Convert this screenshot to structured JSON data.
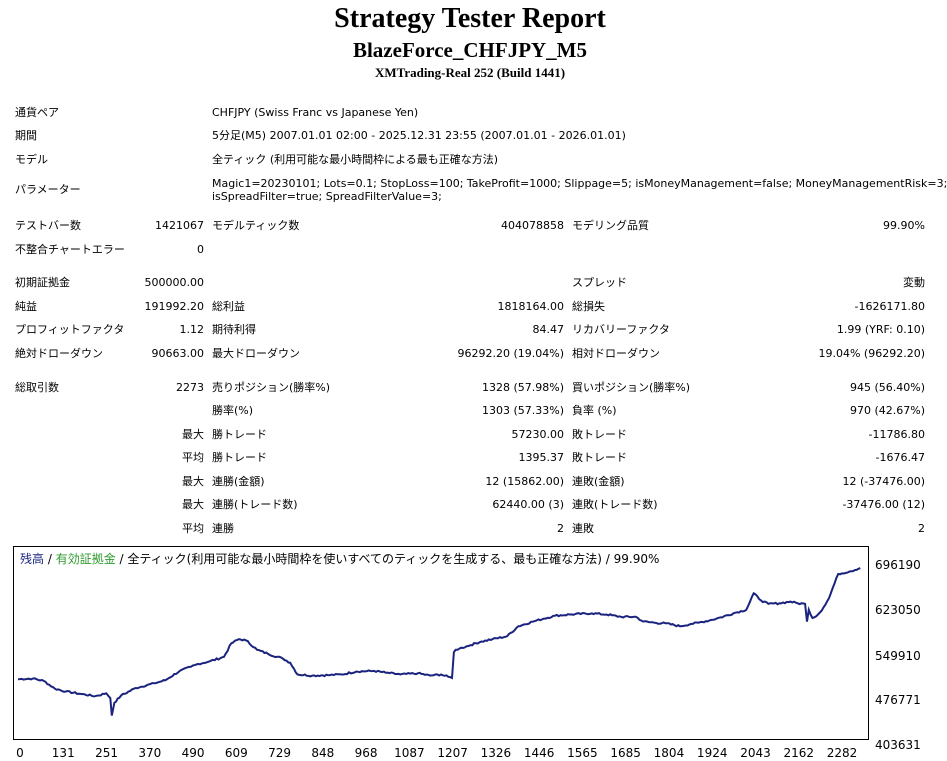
{
  "report": {
    "title": "Strategy Tester Report",
    "ea_name": "BlazeForce_CHFJPY_M5",
    "server": "XMTrading-Real 252 (Build 1441)"
  },
  "info": {
    "symbol_label": "通貨ペア",
    "symbol_value": "CHFJPY (Swiss Franc vs Japanese Yen)",
    "period_label": "期間",
    "period_value": "5分足(M5) 2007.01.01 02:00 - 2025.12.31 23:55 (2007.01.01 - 2026.01.01)",
    "model_label": "モデル",
    "model_value": "全ティック (利用可能な最小時間枠による最も正確な方法)",
    "params_label": "パラメーター",
    "params_line1": "Magic1=20230101; Lots=0.1; StopLoss=100; TakeProfit=1000; Slippage=5; isMoneyManagement=false; MoneyManagementRisk=3;",
    "params_line2": "isSpreadFilter=true; SpreadFilterValue=3;"
  },
  "bars": {
    "test_bars_label": "テストバー数",
    "test_bars_value": "1421067",
    "model_ticks_label": "モデルティック数",
    "model_ticks_value": "404078858",
    "quality_label": "モデリング品質",
    "quality_value": "99.90%",
    "mismatch_label": "不整合チャートエラー",
    "mismatch_value": "0"
  },
  "summary": {
    "initial_deposit_label": "初期証拠金",
    "initial_deposit_value": "500000.00",
    "spread_label": "スプレッド",
    "spread_value": "変動",
    "net_profit_label": "純益",
    "net_profit_value": "191992.20",
    "gross_profit_label": "総利益",
    "gross_profit_value": "1818164.00",
    "gross_loss_label": "総損失",
    "gross_loss_value": "-1626171.80",
    "profit_factor_label": "プロフィットファクタ",
    "profit_factor_value": "1.12",
    "expected_payoff_label": "期待利得",
    "expected_payoff_value": "84.47",
    "recovery_factor_label": "リカバリーファクタ",
    "recovery_factor_value": "1.99 (YRF: 0.10)",
    "abs_dd_label": "絶対ドローダウン",
    "abs_dd_value": "90663.00",
    "max_dd_label": "最大ドローダウン",
    "max_dd_value": "96292.20 (19.04%)",
    "rel_dd_label": "相対ドローダウン",
    "rel_dd_value": "19.04% (96292.20)"
  },
  "trades": {
    "total_label": "総取引数",
    "total_value": "2273",
    "short_label": "売りポジション(勝率%)",
    "short_value": "1328 (57.98%)",
    "long_label": "買いポジション(勝率%)",
    "long_value": "945 (56.40%)",
    "win_rate_label": "勝率(%)",
    "win_rate_value": "1303 (57.33%)",
    "loss_rate_label": "負率 (%)",
    "loss_rate_value": "970 (42.67%)",
    "largest_prefix": "最大",
    "largest_win_label": "勝トレード",
    "largest_win_value": "57230.00",
    "largest_loss_label": "敗トレード",
    "largest_loss_value": "-11786.80",
    "average_prefix": "平均",
    "avg_win_label": "勝トレード",
    "avg_win_value": "1395.37",
    "avg_loss_label": "敗トレード",
    "avg_loss_value": "-1676.47",
    "max_prefix1": "最大",
    "max_consec_wins_label": "連勝(金額)",
    "max_consec_wins_value": "12 (15862.00)",
    "max_consec_losses_label": "連敗(金額)",
    "max_consec_losses_value": "12 (-37476.00)",
    "max_prefix2": "最大",
    "max_consec_profit_label": "連勝(トレード数)",
    "max_consec_profit_value": "62440.00 (3)",
    "max_consec_loss_label": "連敗(トレード数)",
    "max_consec_loss_value": "-37476.00 (12)",
    "avg_prefix2": "平均",
    "avg_consec_wins_label": "連勝",
    "avg_consec_wins_value": "2",
    "avg_consec_losses_label": "連敗",
    "avg_consec_losses_value": "2"
  },
  "chart_data": {
    "type": "line",
    "legend_balance": "残高",
    "legend_sep1": " / ",
    "legend_equity": "有効証拠金",
    "legend_sep2": " / ",
    "legend_rest": "全ティック(利用可能な最小時間枠を使いすべてのティックを生成する、最も正確な方法) / 99.90%",
    "balance_color": "#1a237e",
    "equity_color": "#2e9a2e",
    "y_ticks": [
      "696190",
      "623050",
      "549910",
      "476771",
      "403631"
    ],
    "ylim": [
      403631,
      696190
    ],
    "x_ticks": [
      "0",
      "131",
      "251",
      "370",
      "490",
      "609",
      "729",
      "848",
      "968",
      "1087",
      "1207",
      "1326",
      "1446",
      "1565",
      "1685",
      "1804",
      "1924",
      "2043",
      "2162",
      "2282"
    ],
    "xlim": [
      0,
      2300
    ],
    "series": [
      {
        "x": [
          0,
          40,
          70,
          100,
          130,
          170,
          210,
          240,
          251,
          255,
          262,
          280,
          320,
          370,
          400,
          440,
          470,
          490,
          520,
          560,
          580,
          600,
          620,
          650,
          680,
          720,
          740,
          760,
          800,
          848,
          880,
          920,
          968,
          1000,
          1040,
          1087,
          1120,
          1150,
          1170,
          1180,
          1185,
          1190,
          1200,
          1230,
          1260,
          1290,
          1330,
          1360,
          1400,
          1430,
          1460,
          1500,
          1560,
          1600,
          1640,
          1680,
          1700,
          1730,
          1760,
          1800,
          1830,
          1850,
          1880,
          1910,
          1950,
          1980,
          2000,
          2020,
          2040,
          2070,
          2100,
          2120,
          2140,
          2145,
          2150,
          2160,
          2175,
          2190,
          2205,
          2215,
          2230,
          2260,
          2290
        ],
        "y": [
          502000,
          503000,
          499000,
          486000,
          481000,
          477000,
          473000,
          478000,
          470000,
          440000,
          462000,
          474000,
          487000,
          495000,
          500000,
          516000,
          523000,
          528000,
          532000,
          540000,
          563000,
          570000,
          568000,
          552000,
          545000,
          537000,
          530000,
          510000,
          508000,
          509000,
          510000,
          515000,
          516000,
          513000,
          510000,
          512000,
          508000,
          510000,
          506000,
          504000,
          548000,
          552000,
          554000,
          560000,
          566000,
          570000,
          575000,
          592000,
          600000,
          605000,
          610000,
          612000,
          614000,
          612000,
          608000,
          608000,
          600000,
          598000,
          597000,
          592000,
          596000,
          598000,
          602000,
          607000,
          615000,
          620000,
          648000,
          636000,
          630000,
          631000,
          634000,
          631000,
          630000,
          600000,
          620000,
          606000,
          612000,
          624000,
          640000,
          657000,
          681000,
          685000,
          691000
        ]
      }
    ]
  }
}
